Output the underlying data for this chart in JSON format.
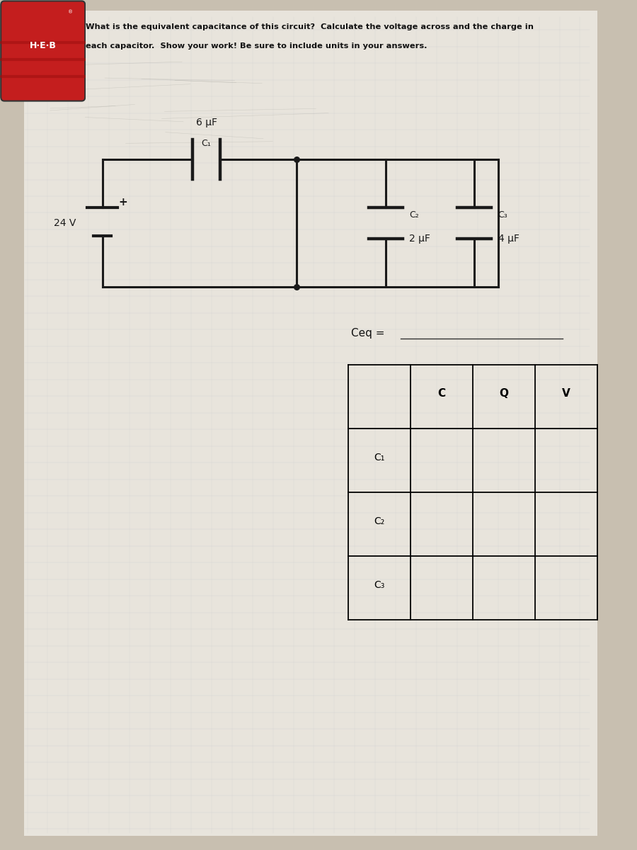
{
  "title_line1": "What is the equivalent capacitance of this circuit?  Calculate the voltage across and the charge in",
  "title_line2": "each capacitor.  Show your work! Be sure to include units in your answers.",
  "bg_color": "#c8bfb0",
  "paper_color": "#e8e4dc",
  "circuit": {
    "voltage": "24 V",
    "c1_label": "6 µF",
    "c1_sublabel": "C₁",
    "c2_label": "2 µF",
    "c2_sublabel": "C₂",
    "c3_label": "4 µF",
    "c3_sublabel": "C₃"
  },
  "ceq_label": "Ceq = ",
  "table_headers": [
    "",
    "C",
    "Q",
    "V"
  ],
  "table_rows": [
    "C₁",
    "C₂",
    "C₃"
  ],
  "heb_red": "#c41e1e",
  "heb_dark_red": "#8b0000",
  "wire_color": "#1a1a1a",
  "lw": 2.2
}
